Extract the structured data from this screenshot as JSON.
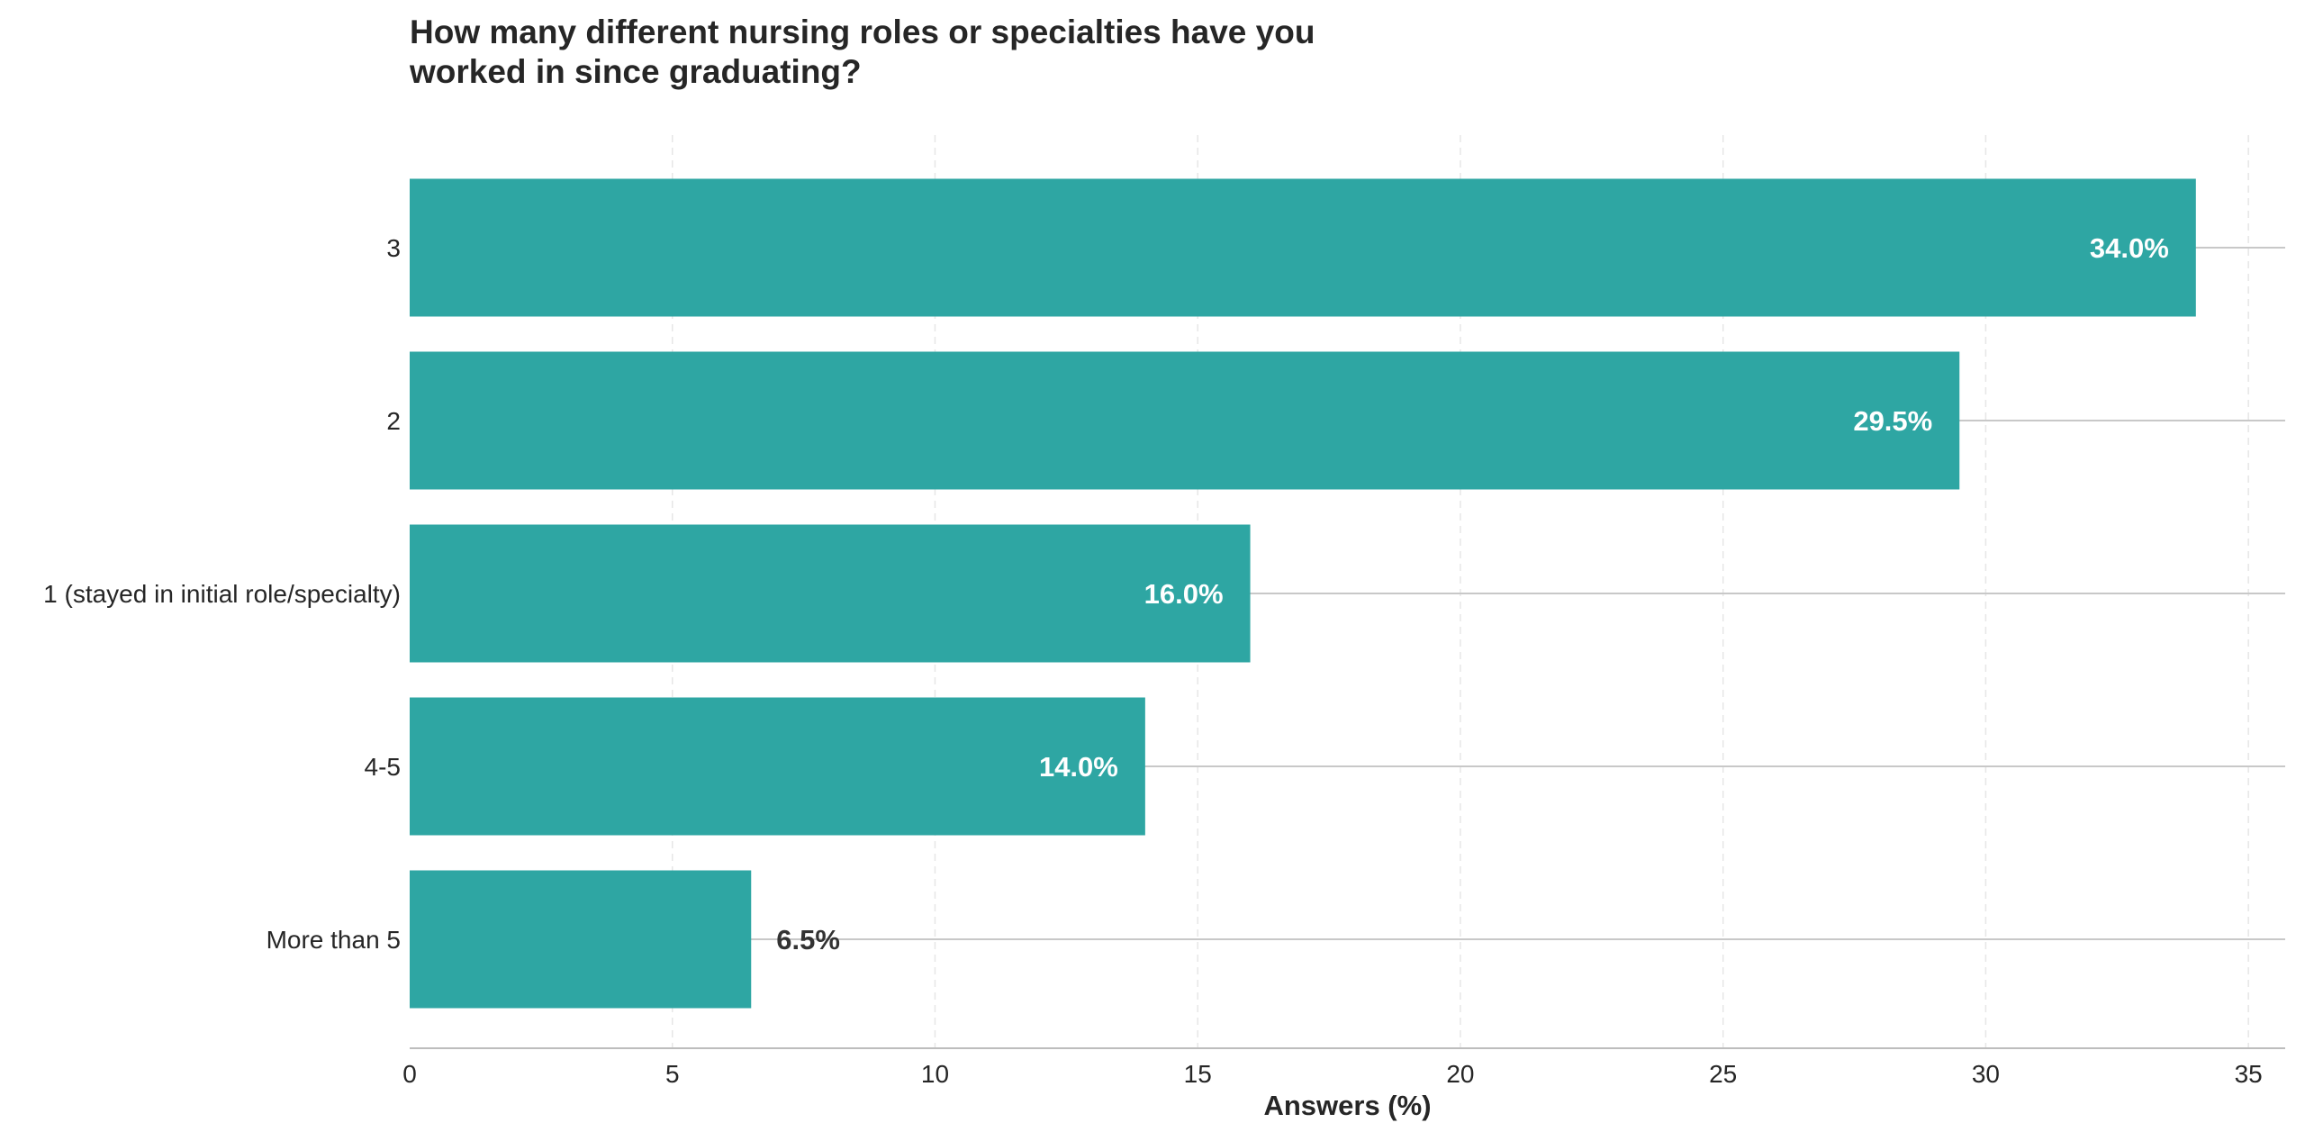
{
  "chart_data": {
    "type": "bar",
    "orientation": "horizontal",
    "title_lines": [
      "How many different nursing roles or specialties have you",
      "worked in since graduating?"
    ],
    "categories": [
      "3",
      "2",
      "1 (stayed in initial role/specialty)",
      "4-5",
      "More than 5"
    ],
    "values": [
      34.0,
      29.5,
      16.0,
      14.0,
      6.5
    ],
    "value_labels": [
      "34.0%",
      "29.5%",
      "16.0%",
      "14.0%",
      "6.5%"
    ],
    "xlabel": "Answers (%)",
    "ylabel": "",
    "xlim": [
      0,
      35.7
    ],
    "xticks": [
      0,
      5,
      10,
      15,
      20,
      25,
      30,
      35
    ],
    "xtick_labels": [
      "0",
      "5",
      "10",
      "15",
      "20",
      "25",
      "30",
      "35"
    ],
    "grid": "x-dashed",
    "bar_color": "#2ca5a2",
    "label_inside_color": "#ffffff",
    "label_outside_color": "#333333"
  }
}
